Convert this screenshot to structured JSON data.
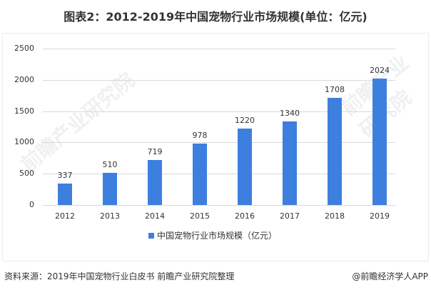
{
  "header": {
    "title": "图表2：2012-2019年中国宠物行业市场规模(单位：亿元)"
  },
  "chart_data": {
    "type": "bar",
    "title": "图表2：2012-2019年中国宠物行业市场规模(单位：亿元)",
    "categories": [
      "2012",
      "2013",
      "2014",
      "2015",
      "2016",
      "2017",
      "2018",
      "2019"
    ],
    "series": [
      {
        "name": "中国宠物行业市场规模（亿元）",
        "values": [
          337,
          510,
          719,
          978,
          1220,
          1340,
          1708,
          2024
        ],
        "color": "#3d7fdf"
      }
    ],
    "xlabel": "",
    "ylabel": "",
    "ylim": [
      0,
      2500
    ],
    "yticks": [
      "0",
      "500",
      "1000",
      "1500",
      "2000",
      "2500"
    ],
    "grid": true,
    "legend_position": "bottom"
  },
  "legend": {
    "label": "中国宠物行业市场规模（亿元）"
  },
  "footer": {
    "source": "资料来源：2019年中国宠物行业白皮书 前瞻产业研究院整理",
    "brand": "@前瞻经济学人APP"
  },
  "watermark": {
    "text": "前瞻产业研究院"
  }
}
